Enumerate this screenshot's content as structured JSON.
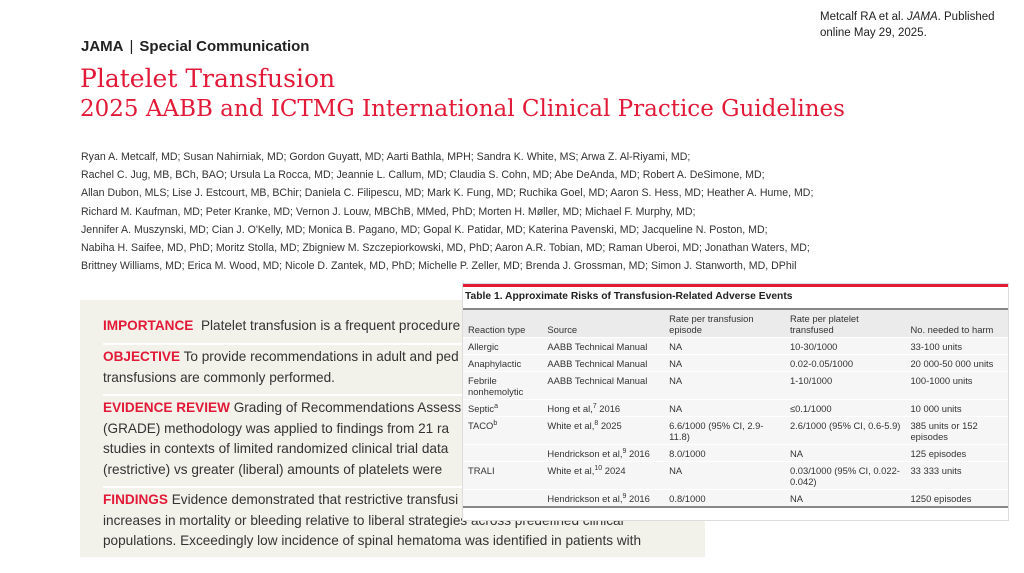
{
  "citation": {
    "prefix": "Metcalf RA et al. ",
    "journal": "JAMA",
    "suffix": ". Published online May 29, 2025."
  },
  "header": {
    "journal": "JAMA",
    "separator": "|",
    "section": "Special Communication",
    "title": "Platelet Transfusion",
    "subtitle": "2025 AABB and ICTMG International Clinical Practice Guidelines"
  },
  "authors": [
    "Ryan A. Metcalf, MD; Susan Nahirniak, MD; Gordon Guyatt, MD; Aarti Bathla, MPH; Sandra K. White, MS; Arwa Z. Al-Riyami, MD;",
    "Rachel C. Jug, MB, BCh, BAO; Ursula La Rocca, MD; Jeannie L. Callum, MD; Claudia S. Cohn, MD; Abe DeAnda, MD; Robert A. DeSimone, MD;",
    "Allan Dubon, MLS; Lise J. Estcourt, MB, BChir; Daniela C. Filipescu, MD; Mark K. Fung, MD; Ruchika Goel, MD; Aaron S. Hess, MD; Heather A. Hume, MD;",
    "Richard M. Kaufman, MD; Peter Kranke, MD; Vernon J. Louw, MBChB, MMed, PhD; Morten H. Møller, MD; Michael F. Murphy, MD;",
    "Jennifer A. Muszynski, MD; Cian J. O'Kelly, MD; Monica B. Pagano, MD; Gopal K. Patidar, MD; Katerina Pavenski, MD; Jacqueline N. Poston, MD;",
    "Nabiha H. Saifee, MD, PhD; Moritz Stolla, MD; Zbigniew M. Szczepiorkowski, MD, PhD; Aaron A.R. Tobian, MD; Raman Uberoi, MD; Jonathan Waters, MD;",
    "Brittney Williams, MD; Erica M. Wood, MD; Nicole D. Zantek, MD, PhD; Michelle P. Zeller, MD; Brenda J. Grossman, MD; Simon J. Stanworth, MD, DPhil"
  ],
  "abstract": {
    "importance": {
      "label": "IMPORTANCE",
      "lines": [
        "Platelet transfusion is a frequent procedure"
      ]
    },
    "objective": {
      "label": "OBJECTIVE",
      "lines": [
        "To provide recommendations in adult and ped",
        "transfusions are commonly performed."
      ]
    },
    "evidence": {
      "label": "EVIDENCE REVIEW",
      "lines": [
        "Grading of Recommendations Assessm",
        "(GRADE) methodology was applied to findings from 21 ra",
        "studies in contexts of limited randomized clinical trial data",
        "(restrictive) vs greater (liberal) amounts of platelets were"
      ]
    },
    "findings": {
      "label": "FINDINGS",
      "lines": [
        "Evidence demonstrated that restrictive transfusi",
        "increases in mortality or bleeding relative to liberal strategies across predefined clinical",
        "populations. Exceedingly low incidence of spinal hematoma was identified in patients with"
      ]
    }
  },
  "table": {
    "caption": "Table 1. Approximate Risks of Transfusion-Related Adverse Events",
    "columns": [
      "Reaction type",
      "Source",
      "Rate per transfusion episode",
      "Rate per platelet transfused",
      "No. needed to harm"
    ],
    "rows": [
      {
        "type": "Allergic",
        "type_sup": "",
        "source": "AABB Technical Manual",
        "ref": "",
        "year": "",
        "episode": "NA",
        "platelet": "10-30/1000",
        "nnh": "33-100 units"
      },
      {
        "type": "Anaphylactic",
        "type_sup": "",
        "source": "AABB Technical Manual",
        "ref": "",
        "year": "",
        "episode": "NA",
        "platelet": "0.02-0.05/1000",
        "nnh": "20 000-50 000 units"
      },
      {
        "type": "Febrile nonhemolytic",
        "type_sup": "",
        "source": "AABB Technical Manual",
        "ref": "",
        "year": "",
        "episode": "NA",
        "platelet": "1-10/1000",
        "nnh": "100-1000 units"
      },
      {
        "type": "Septic",
        "type_sup": "a",
        "source": "Hong et al,",
        "ref": "7",
        "year": " 2016",
        "episode": "NA",
        "platelet": "≤0.1/1000",
        "nnh": "10 000 units"
      },
      {
        "type": "TACO",
        "type_sup": "b",
        "source": "White et al,",
        "ref": "8",
        "year": " 2025",
        "episode": "6.6/1000 (95% CI, 2.9-11.8)",
        "platelet": "2.6/1000 (95% CI, 0.6-5.9)",
        "nnh": "385 units or 152 episodes"
      },
      {
        "type": "",
        "type_sup": "",
        "source": "Hendrickson et al,",
        "ref": "9",
        "year": " 2016",
        "episode": "8.0/1000",
        "platelet": "NA",
        "nnh": "125 episodes"
      },
      {
        "type": "TRALI",
        "type_sup": "",
        "source": "White et al,",
        "ref": "10",
        "year": " 2024",
        "episode": "NA",
        "platelet": "0.03/1000 (95% CI, 0.022-0.042)",
        "nnh": "33 333 units"
      },
      {
        "type": "",
        "type_sup": "",
        "source": "Hendrickson et al,",
        "ref": "9",
        "year": " 2016",
        "episode": "0.8/1000",
        "platelet": "NA",
        "nnh": "1250 episodes"
      }
    ]
  },
  "colors": {
    "accent": "#e21a38",
    "abstract_bg": "#f2f1ea"
  }
}
